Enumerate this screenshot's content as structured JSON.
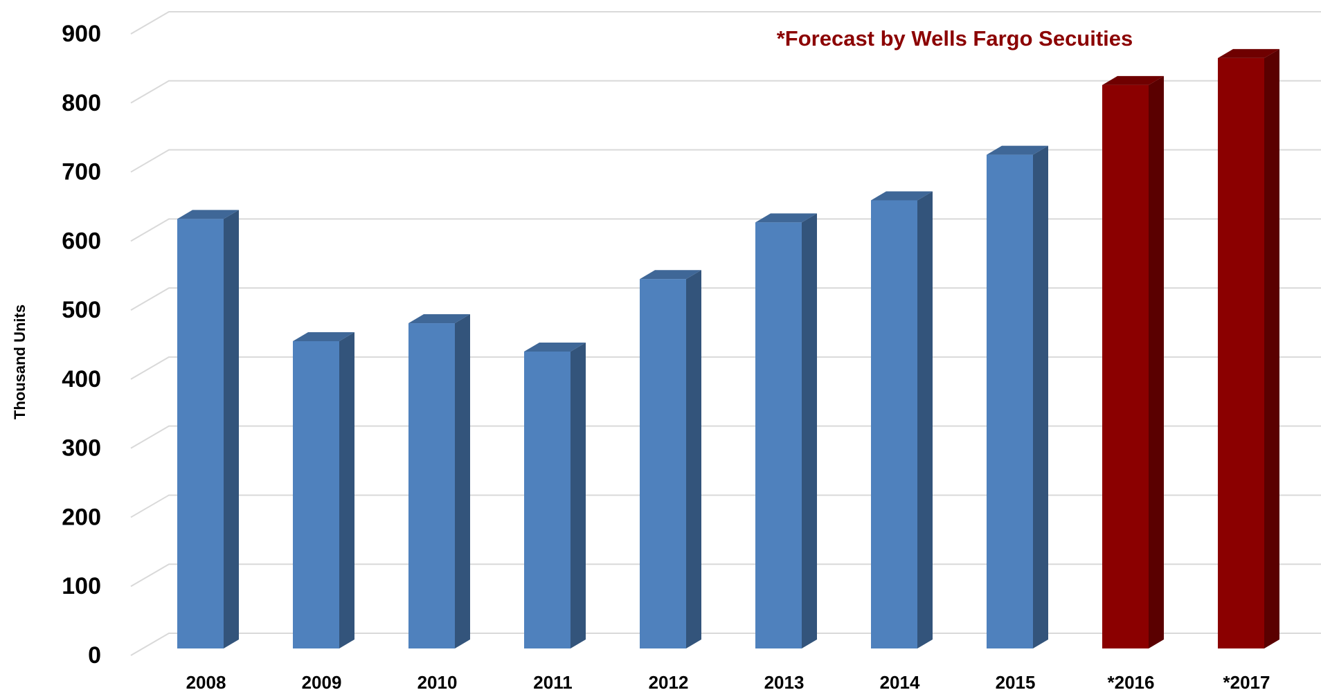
{
  "chart_data": {
    "type": "bar3d",
    "y_label": "Thousand Units",
    "annotation": "*Forecast by Wells Fargo Secuities",
    "categories": [
      "2008",
      "2009",
      "2010",
      "2011",
      "2012",
      "2013",
      "2014",
      "2015",
      "*2016",
      "*2017"
    ],
    "values": [
      622,
      445,
      471,
      430,
      535,
      617,
      649,
      715,
      816,
      855
    ],
    "colors": [
      "#4f81bd",
      "#4f81bd",
      "#4f81bd",
      "#4f81bd",
      "#4f81bd",
      "#4f81bd",
      "#4f81bd",
      "#4f81bd",
      "#8b0000",
      "#8b0000"
    ],
    "ylim": [
      0,
      900
    ],
    "yticks": [
      0,
      100,
      200,
      300,
      400,
      500,
      600,
      700,
      800,
      900
    ],
    "grid": true
  }
}
